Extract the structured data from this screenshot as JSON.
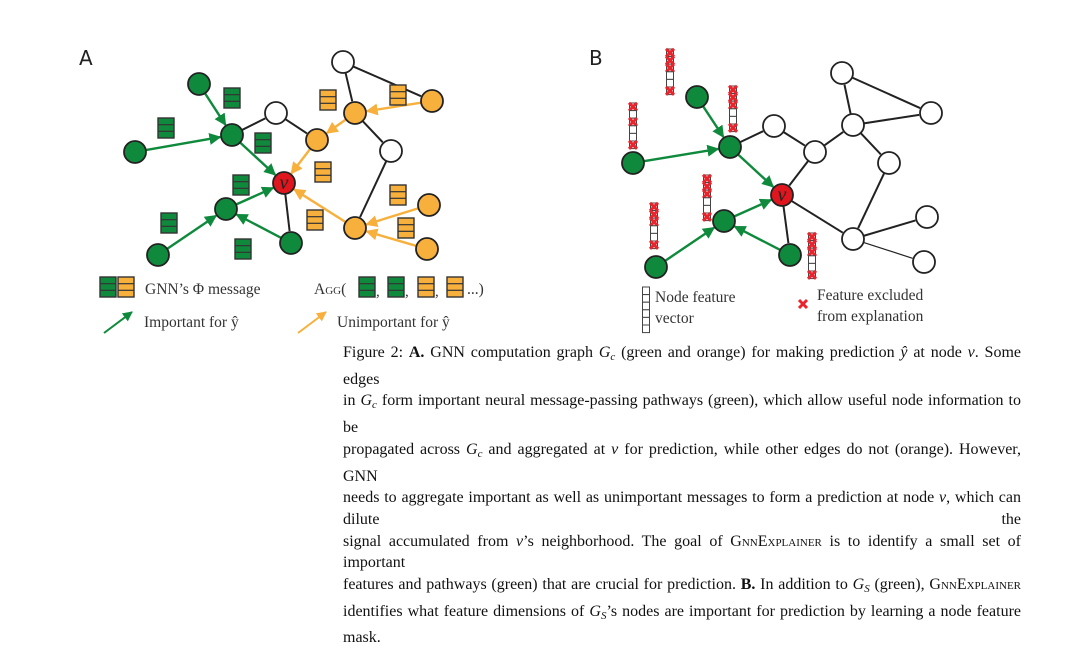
{
  "figure": {
    "panel_a_label": "A",
    "panel_b_label": "B",
    "node_v_label": "v",
    "colors": {
      "important": "#0f8a3c",
      "unimportant": "#f8b03c",
      "target": "#e0161e",
      "excluded": "#e8242c"
    },
    "legend_a": {
      "message_label": "GNN’s Φ message",
      "agg_label": "Agg(",
      "agg_tail": "...)",
      "important_label": "Important for ŷ",
      "unimportant_label": "Unimportant for ŷ"
    },
    "legend_b": {
      "node_feature_line1": "Node feature",
      "node_feature_line2": "vector",
      "excluded_line1": "Feature excluded",
      "excluded_line2": "from explanation"
    }
  },
  "caption": {
    "lines": [
      [
        [
          "Figure 2: ",
          ""
        ],
        [
          "A.",
          "b"
        ],
        [
          " GNN computation graph ",
          ""
        ],
        [
          "G",
          "i"
        ],
        [
          "c",
          "sub"
        ],
        [
          " (green and orange) for making prediction ",
          ""
        ],
        [
          "ŷ",
          "i"
        ],
        [
          " at node ",
          ""
        ],
        [
          "v",
          "i"
        ],
        [
          ". Some edges",
          ""
        ]
      ],
      [
        [
          "in ",
          ""
        ],
        [
          "G",
          "i"
        ],
        [
          "c",
          "sub"
        ],
        [
          " form important neural message-passing pathways (green), which allow useful node information to be",
          ""
        ]
      ],
      [
        [
          "propagated across ",
          ""
        ],
        [
          "G",
          "i"
        ],
        [
          "c",
          "sub"
        ],
        [
          " and aggregated at ",
          ""
        ],
        [
          "v",
          "i"
        ],
        [
          " for prediction, while other edges do not (orange). However, GNN",
          ""
        ]
      ],
      [
        [
          "needs to aggregate important as well as unimportant messages to form a prediction at node ",
          ""
        ],
        [
          "v",
          "i"
        ],
        [
          ", which can dilute the",
          ""
        ]
      ],
      [
        [
          "signal accumulated from ",
          ""
        ],
        [
          "v",
          "i"
        ],
        [
          "’s neighborhood. The goal of ",
          ""
        ],
        [
          "GnnExplainer",
          "smallcaps"
        ],
        [
          " is to identify a small set of important",
          ""
        ]
      ],
      [
        [
          "features and pathways (green) that are crucial for prediction. ",
          ""
        ],
        [
          "B.",
          "b"
        ],
        [
          " In addition to ",
          ""
        ],
        [
          "G",
          "i"
        ],
        [
          "S",
          "sub"
        ],
        [
          " (green), ",
          ""
        ],
        [
          "GnnExplainer",
          "smallcaps"
        ]
      ],
      [
        [
          "identifies what feature dimensions of ",
          ""
        ],
        [
          "G",
          "i"
        ],
        [
          "S",
          "sub"
        ],
        [
          "’s nodes are important for prediction by learning a node feature mask.",
          ""
        ]
      ]
    ]
  }
}
